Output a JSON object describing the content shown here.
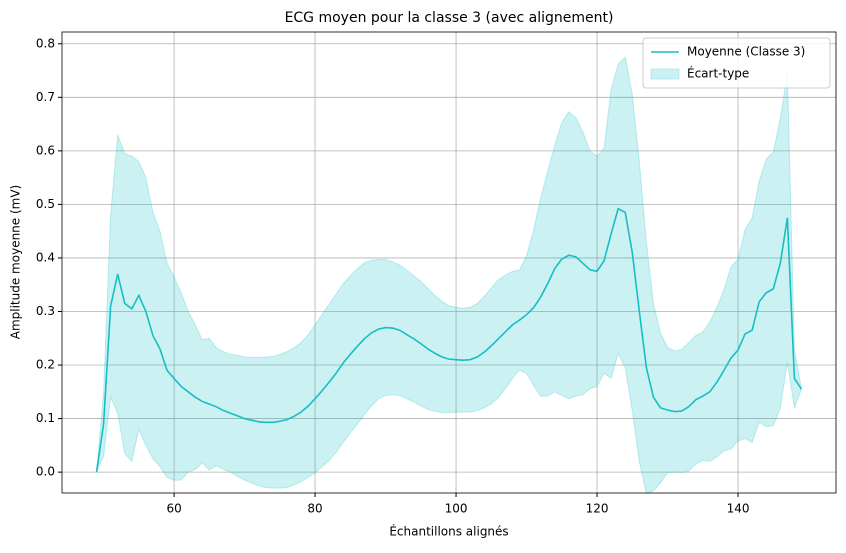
{
  "chart_data": {
    "type": "line",
    "title": "ECG moyen pour la classe 3 (avec alignement)",
    "xlabel": "Échantillons alignés",
    "ylabel": "Amplitude moyenne (mV)",
    "x": [
      49,
      50,
      51,
      52,
      53,
      54,
      55,
      56,
      57,
      58,
      59,
      60,
      61,
      62,
      63,
      64,
      65,
      66,
      67,
      68,
      69,
      70,
      71,
      72,
      73,
      74,
      75,
      76,
      77,
      78,
      79,
      80,
      81,
      82,
      83,
      84,
      85,
      86,
      87,
      88,
      89,
      90,
      91,
      92,
      93,
      94,
      95,
      96,
      97,
      98,
      99,
      100,
      101,
      102,
      103,
      104,
      105,
      106,
      107,
      108,
      109,
      110,
      111,
      112,
      113,
      114,
      115,
      116,
      117,
      118,
      119,
      120,
      121,
      122,
      123,
      124,
      125,
      126,
      127,
      128,
      129,
      130,
      131,
      132,
      133,
      134,
      135,
      136,
      137,
      138,
      139,
      140,
      141,
      142,
      143,
      144,
      145,
      146,
      147,
      148,
      149
    ],
    "series": [
      {
        "name": "Moyenne (Classe 3)",
        "color": "#17bec4",
        "values": [
          0.0,
          0.09,
          0.31,
          0.37,
          0.315,
          0.305,
          0.33,
          0.3,
          0.255,
          0.23,
          0.19,
          0.175,
          0.16,
          0.15,
          0.14,
          0.132,
          0.127,
          0.122,
          0.115,
          0.11,
          0.105,
          0.1,
          0.097,
          0.094,
          0.093,
          0.093,
          0.095,
          0.098,
          0.104,
          0.112,
          0.123,
          0.137,
          0.152,
          0.168,
          0.185,
          0.204,
          0.22,
          0.235,
          0.249,
          0.26,
          0.267,
          0.27,
          0.269,
          0.265,
          0.257,
          0.249,
          0.24,
          0.23,
          0.222,
          0.215,
          0.211,
          0.21,
          0.209,
          0.21,
          0.215,
          0.224,
          0.236,
          0.249,
          0.262,
          0.275,
          0.284,
          0.294,
          0.307,
          0.327,
          0.352,
          0.38,
          0.398,
          0.405,
          0.402,
          0.39,
          0.378,
          0.375,
          0.395,
          0.445,
          0.492,
          0.485,
          0.41,
          0.3,
          0.195,
          0.14,
          0.12,
          0.116,
          0.113,
          0.114,
          0.122,
          0.135,
          0.142,
          0.15,
          0.168,
          0.19,
          0.213,
          0.228,
          0.258,
          0.265,
          0.318,
          0.335,
          0.342,
          0.39,
          0.475,
          0.175,
          0.155
        ]
      },
      {
        "name": "Écart-type",
        "color": "#17bec4",
        "band": true,
        "values": [
          0,
          0.06,
          0.17,
          0.26,
          0.28,
          0.285,
          0.25,
          0.25,
          0.23,
          0.22,
          0.2,
          0.19,
          0.175,
          0.15,
          0.135,
          0.115,
          0.123,
          0.11,
          0.11,
          0.11,
          0.113,
          0.115,
          0.117,
          0.12,
          0.122,
          0.123,
          0.125,
          0.127,
          0.128,
          0.13,
          0.133,
          0.138,
          0.142,
          0.146,
          0.148,
          0.148,
          0.147,
          0.145,
          0.142,
          0.136,
          0.13,
          0.127,
          0.124,
          0.122,
          0.12,
          0.118,
          0.116,
          0.113,
          0.108,
          0.104,
          0.1,
          0.098,
          0.097,
          0.098,
          0.1,
          0.104,
          0.108,
          0.11,
          0.106,
          0.1,
          0.093,
          0.11,
          0.145,
          0.185,
          0.21,
          0.23,
          0.255,
          0.268,
          0.26,
          0.245,
          0.222,
          0.215,
          0.21,
          0.27,
          0.27,
          0.29,
          0.295,
          0.28,
          0.235,
          0.175,
          0.14,
          0.117,
          0.113,
          0.115,
          0.12,
          0.12,
          0.12,
          0.13,
          0.14,
          0.15,
          0.17,
          0.17,
          0.195,
          0.21,
          0.225,
          0.25,
          0.255,
          0.27,
          0.27,
          0.055,
          0
        ]
      }
    ],
    "xlim": [
      44.1,
      153.9
    ],
    "ylim": [
      -0.039,
      0.822
    ],
    "xticks": [
      60,
      80,
      100,
      120,
      140
    ],
    "yticks": [
      {
        "value": 0,
        "label": "0.0"
      },
      0.1,
      0.2,
      0.3,
      0.4,
      0.5,
      0.6,
      0.7,
      0.8
    ],
    "grid": true,
    "legend": "upper right"
  }
}
